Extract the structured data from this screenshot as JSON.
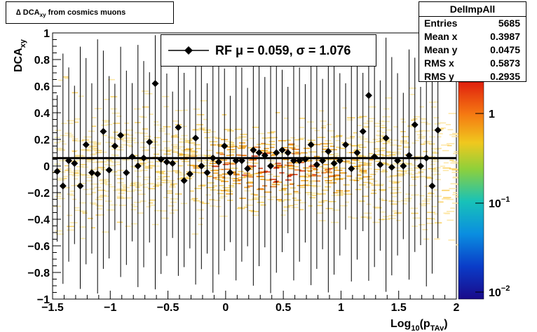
{
  "chart_data": {
    "type": "scatter",
    "title": "∆ DCA",
    "title_sub": "xy",
    "title_suffix": " from cosmics muons",
    "xlabel": "Log",
    "xlabel_sub": "10",
    "xlabel_rest": "(p",
    "xlabel_sub2": "TAv",
    "xlabel_end": ")",
    "ylabel": "DCA",
    "ylabel_sub": "xy",
    "xlim": [
      -1.5,
      2.0
    ],
    "ylim": [
      -1.0,
      1.0
    ],
    "log_z": true,
    "x_ticks": [
      "−1.5",
      "−1",
      "−0.5",
      "0",
      "0.5",
      "1",
      "1.5",
      "2"
    ],
    "y_ticks": [
      "1",
      "0.8",
      "0.6",
      "0.4",
      "0.2",
      "0",
      "−0.2",
      "−0.4",
      "−0.6",
      "−0.8",
      "−1"
    ],
    "z_ticks": [
      "1",
      "10",
      "10"
    ],
    "z_tick_exp": [
      "",
      "−1",
      "−2"
    ],
    "fit_line_y": 0.059,
    "legend_text": "RF μ =  0.059, σ =   1.076",
    "points": [
      {
        "x": -1.46,
        "y": -0.04
      },
      {
        "x": -1.41,
        "y": -0.15
      },
      {
        "x": -1.36,
        "y": 0.04
      },
      {
        "x": -1.31,
        "y": 0.02
      },
      {
        "x": -1.26,
        "y": -0.15
      },
      {
        "x": -1.21,
        "y": 0.16
      },
      {
        "x": -1.16,
        "y": -0.05
      },
      {
        "x": -1.11,
        "y": -0.06
      },
      {
        "x": -1.06,
        "y": 0.26
      },
      {
        "x": -1.01,
        "y": -0.03
      },
      {
        "x": -0.96,
        "y": 0.15
      },
      {
        "x": -0.91,
        "y": 0.23
      },
      {
        "x": -0.86,
        "y": -0.05
      },
      {
        "x": -0.81,
        "y": 0.07
      },
      {
        "x": -0.76,
        "y": 0.0
      },
      {
        "x": -0.71,
        "y": 0.06
      },
      {
        "x": -0.66,
        "y": 0.18
      },
      {
        "x": -0.61,
        "y": 0.62
      },
      {
        "x": -0.56,
        "y": 0.05
      },
      {
        "x": -0.51,
        "y": 0.03
      },
      {
        "x": -0.46,
        "y": 0.02
      },
      {
        "x": -0.41,
        "y": 0.29
      },
      {
        "x": -0.36,
        "y": -0.11
      },
      {
        "x": -0.31,
        "y": -0.06
      },
      {
        "x": -0.26,
        "y": 0.21
      },
      {
        "x": -0.21,
        "y": 0.0
      },
      {
        "x": -0.16,
        "y": -0.05
      },
      {
        "x": -0.11,
        "y": 0.06
      },
      {
        "x": -0.06,
        "y": 0.03
      },
      {
        "x": -0.01,
        "y": 0.15
      },
      {
        "x": 0.04,
        "y": -0.05
      },
      {
        "x": 0.09,
        "y": 0.04
      },
      {
        "x": 0.14,
        "y": 0.04
      },
      {
        "x": 0.19,
        "y": -0.02
      },
      {
        "x": 0.24,
        "y": 0.12
      },
      {
        "x": 0.29,
        "y": 0.1
      },
      {
        "x": 0.34,
        "y": 0.08
      },
      {
        "x": 0.39,
        "y": 0.0
      },
      {
        "x": 0.44,
        "y": 0.1
      },
      {
        "x": 0.49,
        "y": 0.12
      },
      {
        "x": 0.54,
        "y": 0.1
      },
      {
        "x": 0.59,
        "y": 0.04
      },
      {
        "x": 0.64,
        "y": 0.04
      },
      {
        "x": 0.69,
        "y": 0.05
      },
      {
        "x": 0.74,
        "y": 0.16
      },
      {
        "x": 0.79,
        "y": 0.01
      },
      {
        "x": 0.84,
        "y": 0.04
      },
      {
        "x": 0.89,
        "y": 0.11
      },
      {
        "x": 0.94,
        "y": 0.02
      },
      {
        "x": 0.99,
        "y": 0.04
      },
      {
        "x": 1.04,
        "y": 0.16
      },
      {
        "x": 1.09,
        "y": -0.02
      },
      {
        "x": 1.14,
        "y": 0.1
      },
      {
        "x": 1.19,
        "y": 0.26
      },
      {
        "x": 1.24,
        "y": 0.53
      },
      {
        "x": 1.29,
        "y": 0.07
      },
      {
        "x": 1.34,
        "y": 0.01
      },
      {
        "x": 1.39,
        "y": 0.21
      },
      {
        "x": 1.44,
        "y": -0.01
      },
      {
        "x": 1.49,
        "y": 0.04
      },
      {
        "x": 1.54,
        "y": 0.0
      },
      {
        "x": 1.59,
        "y": 0.08
      },
      {
        "x": 1.64,
        "y": 0.31
      },
      {
        "x": 1.69,
        "y": 0.0
      },
      {
        "x": 1.74,
        "y": 0.06
      },
      {
        "x": 1.79,
        "y": -0.15
      },
      {
        "x": 1.84,
        "y": 0.27
      }
    ]
  },
  "stats": {
    "title": "DelImpAll",
    "rows": [
      {
        "label": "Entries",
        "value": "5685"
      },
      {
        "label": "Mean x",
        "value": "0.3987"
      },
      {
        "label": "Mean y",
        "value": "0.0475"
      },
      {
        "label": "RMS x",
        "value": "0.5873"
      },
      {
        "label": "RMS y",
        "value": "0.2935"
      }
    ]
  },
  "colors": {
    "marker": "#000000",
    "fit_line": "#000000",
    "heat_low": "#fde7a8",
    "heat_mid": "#f5a623",
    "heat_high": "#d93a0e"
  }
}
